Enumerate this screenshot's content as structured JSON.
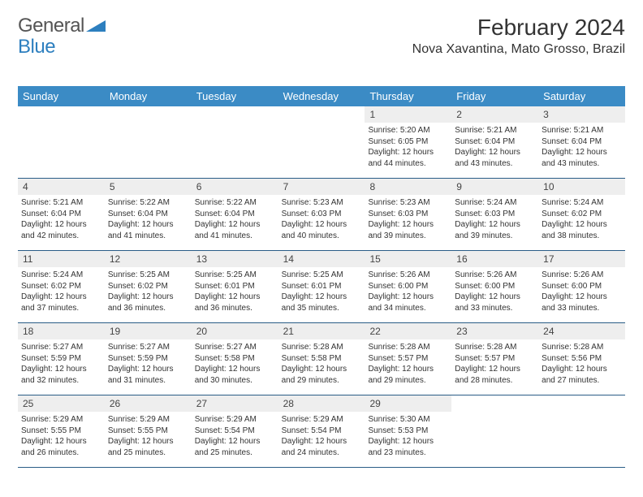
{
  "brand": {
    "word1": "General",
    "word2": "Blue",
    "color1": "#555555",
    "color2": "#2d7fbf"
  },
  "title": "February 2024",
  "location": "Nova Xavantina, Mato Grosso, Brazil",
  "header_bg": "#3b8bc5",
  "header_fg": "#ffffff",
  "daynum_bg": "#eeeeee",
  "row_border": "#2a5d87",
  "weekdays": [
    "Sunday",
    "Monday",
    "Tuesday",
    "Wednesday",
    "Thursday",
    "Friday",
    "Saturday"
  ],
  "weeks": [
    [
      null,
      null,
      null,
      null,
      {
        "n": "1",
        "sr": "5:20 AM",
        "ss": "6:05 PM",
        "dl": "12 hours and 44 minutes."
      },
      {
        "n": "2",
        "sr": "5:21 AM",
        "ss": "6:04 PM",
        "dl": "12 hours and 43 minutes."
      },
      {
        "n": "3",
        "sr": "5:21 AM",
        "ss": "6:04 PM",
        "dl": "12 hours and 43 minutes."
      }
    ],
    [
      {
        "n": "4",
        "sr": "5:21 AM",
        "ss": "6:04 PM",
        "dl": "12 hours and 42 minutes."
      },
      {
        "n": "5",
        "sr": "5:22 AM",
        "ss": "6:04 PM",
        "dl": "12 hours and 41 minutes."
      },
      {
        "n": "6",
        "sr": "5:22 AM",
        "ss": "6:04 PM",
        "dl": "12 hours and 41 minutes."
      },
      {
        "n": "7",
        "sr": "5:23 AM",
        "ss": "6:03 PM",
        "dl": "12 hours and 40 minutes."
      },
      {
        "n": "8",
        "sr": "5:23 AM",
        "ss": "6:03 PM",
        "dl": "12 hours and 39 minutes."
      },
      {
        "n": "9",
        "sr": "5:24 AM",
        "ss": "6:03 PM",
        "dl": "12 hours and 39 minutes."
      },
      {
        "n": "10",
        "sr": "5:24 AM",
        "ss": "6:02 PM",
        "dl": "12 hours and 38 minutes."
      }
    ],
    [
      {
        "n": "11",
        "sr": "5:24 AM",
        "ss": "6:02 PM",
        "dl": "12 hours and 37 minutes."
      },
      {
        "n": "12",
        "sr": "5:25 AM",
        "ss": "6:02 PM",
        "dl": "12 hours and 36 minutes."
      },
      {
        "n": "13",
        "sr": "5:25 AM",
        "ss": "6:01 PM",
        "dl": "12 hours and 36 minutes."
      },
      {
        "n": "14",
        "sr": "5:25 AM",
        "ss": "6:01 PM",
        "dl": "12 hours and 35 minutes."
      },
      {
        "n": "15",
        "sr": "5:26 AM",
        "ss": "6:00 PM",
        "dl": "12 hours and 34 minutes."
      },
      {
        "n": "16",
        "sr": "5:26 AM",
        "ss": "6:00 PM",
        "dl": "12 hours and 33 minutes."
      },
      {
        "n": "17",
        "sr": "5:26 AM",
        "ss": "6:00 PM",
        "dl": "12 hours and 33 minutes."
      }
    ],
    [
      {
        "n": "18",
        "sr": "5:27 AM",
        "ss": "5:59 PM",
        "dl": "12 hours and 32 minutes."
      },
      {
        "n": "19",
        "sr": "5:27 AM",
        "ss": "5:59 PM",
        "dl": "12 hours and 31 minutes."
      },
      {
        "n": "20",
        "sr": "5:27 AM",
        "ss": "5:58 PM",
        "dl": "12 hours and 30 minutes."
      },
      {
        "n": "21",
        "sr": "5:28 AM",
        "ss": "5:58 PM",
        "dl": "12 hours and 29 minutes."
      },
      {
        "n": "22",
        "sr": "5:28 AM",
        "ss": "5:57 PM",
        "dl": "12 hours and 29 minutes."
      },
      {
        "n": "23",
        "sr": "5:28 AM",
        "ss": "5:57 PM",
        "dl": "12 hours and 28 minutes."
      },
      {
        "n": "24",
        "sr": "5:28 AM",
        "ss": "5:56 PM",
        "dl": "12 hours and 27 minutes."
      }
    ],
    [
      {
        "n": "25",
        "sr": "5:29 AM",
        "ss": "5:55 PM",
        "dl": "12 hours and 26 minutes."
      },
      {
        "n": "26",
        "sr": "5:29 AM",
        "ss": "5:55 PM",
        "dl": "12 hours and 25 minutes."
      },
      {
        "n": "27",
        "sr": "5:29 AM",
        "ss": "5:54 PM",
        "dl": "12 hours and 25 minutes."
      },
      {
        "n": "28",
        "sr": "5:29 AM",
        "ss": "5:54 PM",
        "dl": "12 hours and 24 minutes."
      },
      {
        "n": "29",
        "sr": "5:30 AM",
        "ss": "5:53 PM",
        "dl": "12 hours and 23 minutes."
      },
      null,
      null
    ]
  ],
  "labels": {
    "sunrise": "Sunrise:",
    "sunset": "Sunset:",
    "daylight": "Daylight:"
  }
}
